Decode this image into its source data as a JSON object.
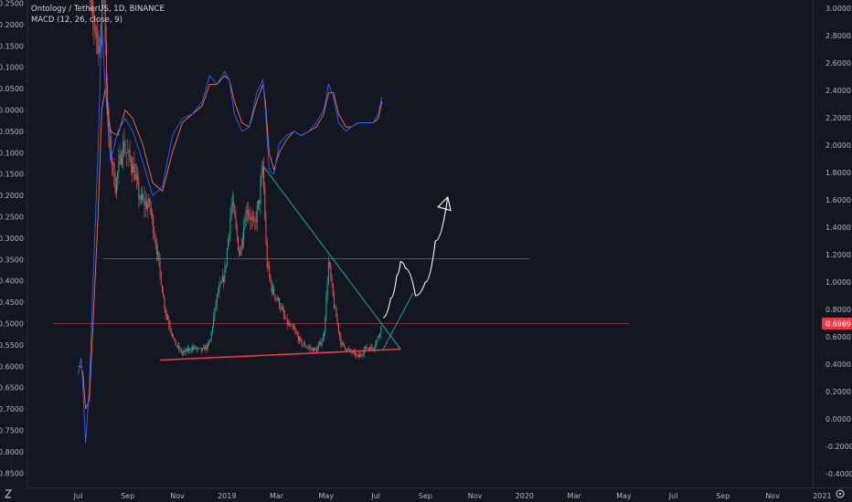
{
  "chart_data": {
    "type": "line",
    "title": "Ontology / TetherUS, 1D, BINANCE",
    "indicator": "MACD (12, 26, close, 9)",
    "x_ticks": [
      "Jul",
      "Sep",
      "Nov",
      "2019",
      "Mar",
      "May",
      "Jul",
      "Sep",
      "Nov",
      "2020",
      "Mar",
      "May",
      "Jul",
      "Sep",
      "Nov",
      "2021"
    ],
    "right_axis": {
      "ticks": [
        "3.0000",
        "2.8000",
        "2.6000",
        "2.4000",
        "2.2000",
        "2.0000",
        "1.8000",
        "1.6000",
        "1.4000",
        "1.2000",
        "1.0000",
        "0.8000",
        "0.6000",
        "0.4000",
        "0.2000",
        "0.0000",
        "-0.2000",
        "-0.4000"
      ],
      "range": [
        -0.42,
        3.02
      ],
      "last_price_label": "0.6969",
      "last_price": 0.6969
    },
    "left_axis": {
      "ticks": [
        "0.2500",
        "0.2000",
        "0.1500",
        "0.1000",
        "0.0500",
        "0.0000",
        "-0.0500",
        "-0.1000",
        "-0.1500",
        "-0.2000",
        "-0.2500",
        "-0.3000",
        "-0.3500",
        "-0.4000",
        "-0.4500",
        "-0.5000",
        "-0.5500",
        "-0.6000",
        "-0.6500",
        "-0.7000",
        "-0.7500",
        "-0.8000",
        "-0.8500"
      ],
      "range": [
        -0.858,
        0.251
      ]
    },
    "price_series": {
      "months": [
        0.15,
        0.5,
        0.9,
        1.0,
        1.2,
        1.5,
        1.8,
        2.2,
        2.5,
        2.9,
        3.2,
        3.5,
        3.9,
        4.2,
        4.6,
        5.0,
        5.3,
        5.6,
        5.9,
        6.2,
        6.5,
        6.8,
        7.1,
        7.3,
        7.45,
        7.6,
        7.8,
        8.1,
        8.4,
        8.7,
        9.0,
        9.3,
        9.6,
        9.9,
        10.1,
        10.3,
        10.6,
        10.9,
        11.1,
        11.3,
        11.6,
        11.9,
        12.1,
        12.25
      ],
      "price": [
        4.0,
        3.0,
        2.7,
        3.4,
        2.1,
        1.7,
        2.0,
        1.85,
        1.6,
        1.55,
        1.2,
        0.8,
        0.55,
        0.48,
        0.52,
        0.5,
        0.55,
        0.9,
        1.05,
        1.6,
        1.2,
        1.55,
        1.4,
        1.6,
        1.85,
        1.15,
        0.95,
        0.85,
        0.7,
        0.65,
        0.55,
        0.52,
        0.5,
        0.6,
        1.15,
        0.85,
        0.55,
        0.5,
        0.48,
        0.45,
        0.52,
        0.52,
        0.6,
        0.697
      ]
    },
    "macd_series": {
      "months": [
        0.0,
        0.12,
        0.2,
        0.3,
        0.45,
        0.6,
        0.8,
        0.95,
        1.1,
        1.3,
        1.6,
        1.9,
        2.2,
        2.6,
        3.0,
        3.4,
        3.8,
        4.2,
        4.6,
        5.0,
        5.3,
        5.6,
        5.9,
        6.1,
        6.3,
        6.6,
        6.9,
        7.2,
        7.45,
        7.55,
        7.7,
        7.9,
        8.1,
        8.4,
        8.7,
        9.0,
        9.3,
        9.6,
        9.9,
        10.1,
        10.3,
        10.5,
        10.8,
        11.0,
        11.3,
        11.6,
        11.9,
        12.1,
        12.25
      ],
      "macd": [
        -0.62,
        -0.58,
        -0.66,
        -0.78,
        -0.65,
        -0.4,
        -0.1,
        0.2,
        0.05,
        -0.12,
        -0.05,
        -0.02,
        -0.05,
        -0.12,
        -0.2,
        -0.18,
        -0.06,
        -0.02,
        -0.01,
        0.02,
        0.08,
        0.06,
        0.09,
        0.07,
        -0.01,
        -0.05,
        -0.04,
        0.04,
        0.07,
        0.0,
        -0.14,
        -0.15,
        -0.08,
        -0.06,
        -0.05,
        -0.06,
        -0.05,
        -0.03,
        0.0,
        0.06,
        0.03,
        -0.03,
        -0.05,
        -0.04,
        -0.03,
        -0.03,
        -0.03,
        -0.01,
        0.03
      ],
      "signal": [
        -0.6,
        -0.6,
        -0.62,
        -0.7,
        -0.68,
        -0.5,
        -0.25,
        0.0,
        0.05,
        -0.05,
        -0.06,
        0.0,
        -0.02,
        -0.08,
        -0.17,
        -0.19,
        -0.1,
        -0.03,
        -0.01,
        0.01,
        0.06,
        0.06,
        0.08,
        0.07,
        0.02,
        -0.03,
        -0.04,
        0.02,
        0.06,
        0.02,
        -0.1,
        -0.14,
        -0.1,
        -0.07,
        -0.05,
        -0.06,
        -0.05,
        -0.04,
        -0.01,
        0.04,
        0.04,
        -0.01,
        -0.04,
        -0.04,
        -0.03,
        -0.03,
        -0.03,
        -0.02,
        0.02
      ]
    },
    "annotations": {
      "horizontal_levels": [
        {
          "price": 1.17,
          "color": "#b22833",
          "from_month": 1.0,
          "to_month": 18.2
        },
        {
          "price": 0.697,
          "color": "#7a2f3a",
          "from_month": -1.0,
          "to_month": 22.2
        }
      ],
      "support_line": {
        "color": "#f23645",
        "from": [
          3.3,
          0.43
        ],
        "to": [
          13.0,
          0.51
        ]
      },
      "descending_line": {
        "color": "#26a69a",
        "from": [
          7.45,
          1.85
        ],
        "to": [
          13.0,
          0.51
        ]
      },
      "ascending_line": {
        "color": "#26a69a",
        "from": [
          12.3,
          0.51
        ],
        "to": [
          13.5,
          0.92
        ]
      },
      "projection_path": {
        "color": "#ffffff",
        "months": [
          12.3,
          12.6,
          12.85,
          13.0,
          13.2,
          13.6,
          14.0,
          14.4,
          14.9
        ],
        "prices": [
          0.74,
          0.88,
          1.05,
          1.15,
          1.1,
          0.9,
          1.0,
          1.3,
          1.62
        ]
      }
    },
    "grid": false,
    "legend": "top-left"
  }
}
